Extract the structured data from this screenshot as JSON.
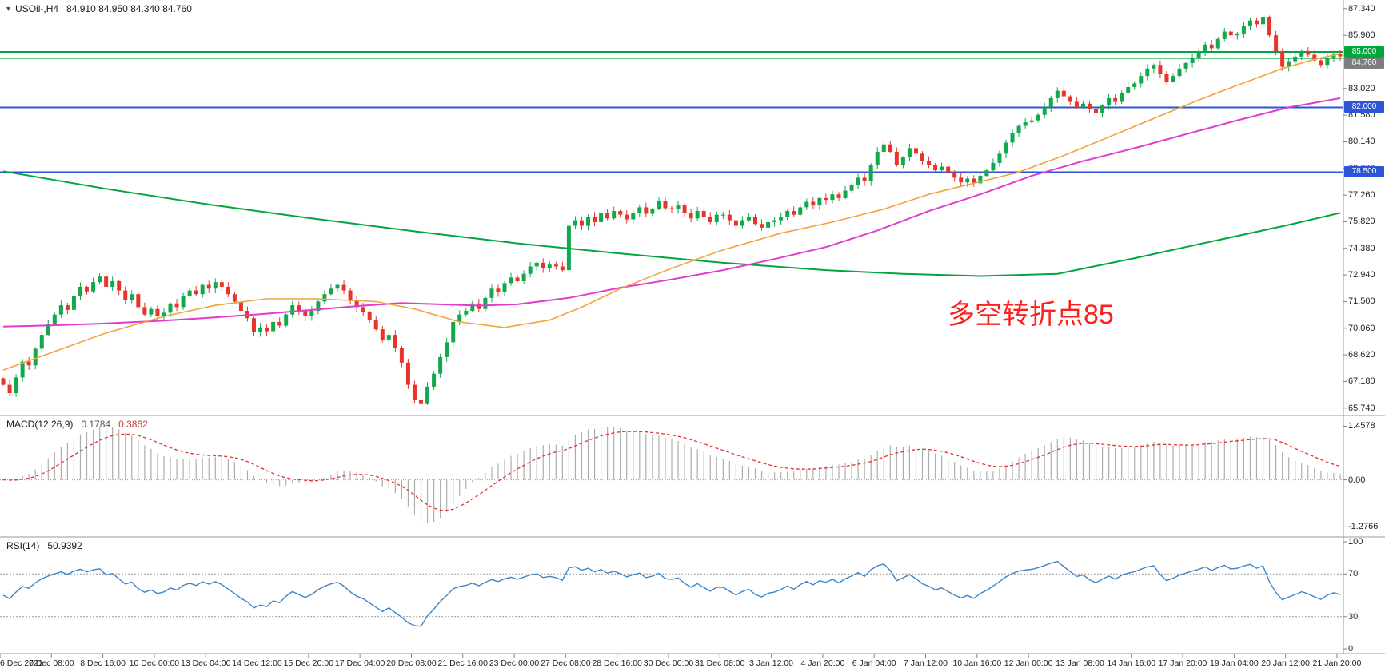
{
  "header": {
    "symbol_title": "USOil-,H4",
    "ohlc": "84.910 84.950 84.340 84.760"
  },
  "icons": {
    "collapse_arrow": "▾"
  },
  "chart_data": [
    {
      "type": "candlestick",
      "symbol": "USOil-",
      "timeframe": "H4",
      "ylim": [
        65.6,
        87.55
      ],
      "yticks": [
        "87.340",
        "85.900",
        "84.460",
        "83.020",
        "81.580",
        "80.140",
        "78.700",
        "77.260",
        "75.820",
        "74.380",
        "72.940",
        "71.500",
        "70.060",
        "68.620",
        "67.180",
        "65.740"
      ],
      "xticks": [
        "6 Dec 2021",
        "7 Dec 08:00",
        "8 Dec 16:00",
        "10 Dec 00:00",
        "13 Dec 04:00",
        "14 Dec 12:00",
        "15 Dec 20:00",
        "17 Dec 04:00",
        "20 Dec 08:00",
        "21 Dec 16:00",
        "23 Dec 00:00",
        "27 Dec 08:00",
        "28 Dec 16:00",
        "30 Dec 00:00",
        "31 Dec 08:00",
        "3 Jan 12:00",
        "4 Jan 20:00",
        "6 Jan 04:00",
        "7 Jan 12:00",
        "10 Jan 16:00",
        "12 Jan 00:00",
        "13 Jan 08:00",
        "14 Jan 16:00",
        "17 Jan 20:00",
        "19 Jan 04:00",
        "20 Jan 12:00",
        "21 Jan 20:00"
      ],
      "first_open": 67.35,
      "closes": [
        67.0,
        66.55,
        67.4,
        68.25,
        68.05,
        68.95,
        69.7,
        70.3,
        70.8,
        71.3,
        71.05,
        71.8,
        72.3,
        72.05,
        72.55,
        72.85,
        72.3,
        72.6,
        72.1,
        71.6,
        71.9,
        71.2,
        70.8,
        71.1,
        70.7,
        70.9,
        71.4,
        71.2,
        71.8,
        72.1,
        71.9,
        72.4,
        72.2,
        72.55,
        72.3,
        71.9,
        71.5,
        71.0,
        70.6,
        69.85,
        70.1,
        69.9,
        70.4,
        70.2,
        70.8,
        71.3,
        71.0,
        70.7,
        71.0,
        71.5,
        71.9,
        72.2,
        72.4,
        72.1,
        71.6,
        71.2,
        70.95,
        70.5,
        70.0,
        69.4,
        69.7,
        69.0,
        68.2,
        67.0,
        66.2,
        66.0,
        66.9,
        67.6,
        68.5,
        69.3,
        70.4,
        70.8,
        71.0,
        71.4,
        71.1,
        71.7,
        72.2,
        72.0,
        72.5,
        72.8,
        72.6,
        73.0,
        73.4,
        73.6,
        73.3,
        73.5,
        73.4,
        73.2,
        75.6,
        75.9,
        75.6,
        76.1,
        75.8,
        76.3,
        76.0,
        76.4,
        76.2,
        75.95,
        76.3,
        76.6,
        76.25,
        76.5,
        76.95,
        76.55,
        76.5,
        76.7,
        76.3,
        76.0,
        76.4,
        76.1,
        75.8,
        76.2,
        76.2,
        75.9,
        75.6,
        75.9,
        76.1,
        75.7,
        75.5,
        75.8,
        75.9,
        76.1,
        76.4,
        76.2,
        76.6,
        76.9,
        76.7,
        77.1,
        77.0,
        77.3,
        77.1,
        77.5,
        77.8,
        78.2,
        78.0,
        78.9,
        79.6,
        80.0,
        79.6,
        78.9,
        79.3,
        79.8,
        79.5,
        79.1,
        78.9,
        78.6,
        78.8,
        78.5,
        78.2,
        77.95,
        78.15,
        77.9,
        78.3,
        78.6,
        79.0,
        79.5,
        80.1,
        80.6,
        81.0,
        81.2,
        81.3,
        81.6,
        82.0,
        82.5,
        82.9,
        82.6,
        82.3,
        82.0,
        82.2,
        81.9,
        81.7,
        82.1,
        82.5,
        82.3,
        82.8,
        83.1,
        83.3,
        83.7,
        84.1,
        84.3,
        83.8,
        83.4,
        83.7,
        84.1,
        84.4,
        84.7,
        85.0,
        85.4,
        85.2,
        85.7,
        86.1,
        85.9,
        86.0,
        86.4,
        86.7,
        86.5,
        86.9,
        85.9,
        85.0,
        84.2,
        84.5,
        84.75,
        85.05,
        84.85,
        84.55,
        84.3,
        84.7,
        84.91,
        84.76
      ],
      "extremes": {
        "low_index": 65,
        "low": 65.9,
        "high_index": 196,
        "high": 87.15
      },
      "hlines": [
        {
          "value": 85.0,
          "color": "#00A63C",
          "width": 2
        },
        {
          "value": 84.65,
          "color": "#00A63C",
          "width": 1
        },
        {
          "value": 82.0,
          "color": "#2E54D6",
          "width": 2
        },
        {
          "value": 78.5,
          "color": "#2E54D6",
          "width": 2
        }
      ],
      "price_tags": [
        {
          "label": "85.000",
          "value": 85.0,
          "color": "#00A63C"
        },
        {
          "label": "84.760",
          "value": 84.76,
          "color": "#7d7d7d"
        },
        {
          "label": "82.000",
          "value": 82.0,
          "color": "#2E54D6"
        },
        {
          "label": "78.500",
          "value": 78.5,
          "color": "#2E54D6"
        }
      ],
      "moving_averages": [
        {
          "name": "long-ma-green-line",
          "color": "#00A63C",
          "width": 2,
          "points": [
            [
              0,
              78.55
            ],
            [
              16,
              77.6
            ],
            [
              32,
              76.75
            ],
            [
              48,
              76.0
            ],
            [
              64,
              75.3
            ],
            [
              80,
              74.65
            ],
            [
              96,
              74.1
            ],
            [
              112,
              73.6
            ],
            [
              128,
              73.2
            ],
            [
              140,
              73.0
            ],
            [
              152,
              72.88
            ],
            [
              164,
              73.0
            ],
            [
              176,
              73.85
            ],
            [
              188,
              74.75
            ],
            [
              200,
              75.65
            ],
            [
              208,
              76.3
            ]
          ]
        },
        {
          "name": "mid-ma-magenta-line",
          "color": "#E23BD0",
          "width": 2,
          "points": [
            [
              0,
              70.15
            ],
            [
              8,
              70.22
            ],
            [
              16,
              70.32
            ],
            [
              24,
              70.45
            ],
            [
              32,
              70.62
            ],
            [
              40,
              70.82
            ],
            [
              48,
              71.05
            ],
            [
              56,
              71.28
            ],
            [
              62,
              71.42
            ],
            [
              68,
              71.35
            ],
            [
              74,
              71.28
            ],
            [
              80,
              71.35
            ],
            [
              88,
              71.7
            ],
            [
              96,
              72.25
            ],
            [
              104,
              72.7
            ],
            [
              112,
              73.2
            ],
            [
              120,
              73.8
            ],
            [
              128,
              74.45
            ],
            [
              136,
              75.35
            ],
            [
              144,
              76.4
            ],
            [
              152,
              77.3
            ],
            [
              160,
              78.3
            ],
            [
              168,
              79.1
            ],
            [
              176,
              79.8
            ],
            [
              184,
              80.55
            ],
            [
              192,
              81.3
            ],
            [
              200,
              82.0
            ],
            [
              208,
              82.5
            ]
          ]
        },
        {
          "name": "fast-ma-orange-line",
          "color": "#F2A33C",
          "width": 1.6,
          "points": [
            [
              0,
              67.8
            ],
            [
              8,
              68.8
            ],
            [
              16,
              69.8
            ],
            [
              25,
              70.7
            ],
            [
              33,
              71.3
            ],
            [
              41,
              71.65
            ],
            [
              49,
              71.65
            ],
            [
              58,
              71.5
            ],
            [
              64,
              71.1
            ],
            [
              71,
              70.4
            ],
            [
              78,
              70.1
            ],
            [
              85,
              70.5
            ],
            [
              90,
              71.2
            ],
            [
              96,
              72.2
            ],
            [
              104,
              73.3
            ],
            [
              112,
              74.3
            ],
            [
              121,
              75.2
            ],
            [
              129,
              75.8
            ],
            [
              137,
              76.5
            ],
            [
              144,
              77.3
            ],
            [
              151,
              77.9
            ],
            [
              158,
              78.5
            ],
            [
              165,
              79.4
            ],
            [
              172,
              80.4
            ],
            [
              179,
              81.4
            ],
            [
              186,
              82.4
            ],
            [
              192,
              83.2
            ],
            [
              199,
              84.1
            ],
            [
              204,
              84.6
            ],
            [
              208,
              84.9
            ]
          ]
        }
      ],
      "candle_colors": {
        "up": "#12A94D",
        "down": "#E8352C"
      },
      "annotation": {
        "text": "多空转折点85",
        "color": "#FF1F1F"
      }
    },
    {
      "type": "bar+line",
      "name": "MACD",
      "label": "MACD(12,26,9)",
      "value_main": "0.1784",
      "value_signal": "0.3862",
      "params": [
        12,
        26,
        9
      ],
      "ylim": [
        -1.42,
        1.62
      ],
      "yticks": [
        "1.4578",
        "0.00",
        "-1.2766"
      ],
      "histogram_color": "#ADADAD",
      "signal_color": "#E03131",
      "zero_line_color": "#999999",
      "source": "chart_data.0.closes"
    },
    {
      "type": "line",
      "name": "RSI",
      "label": "RSI(14)",
      "value": "50.9392",
      "period": 14,
      "ylim": [
        0,
        100
      ],
      "yticks": [
        "100",
        "70",
        "30",
        "0"
      ],
      "levels": [
        70,
        30
      ],
      "line_color": "#3D85C8",
      "level_line_color": "#999999",
      "source": "chart_data.0.closes"
    }
  ]
}
